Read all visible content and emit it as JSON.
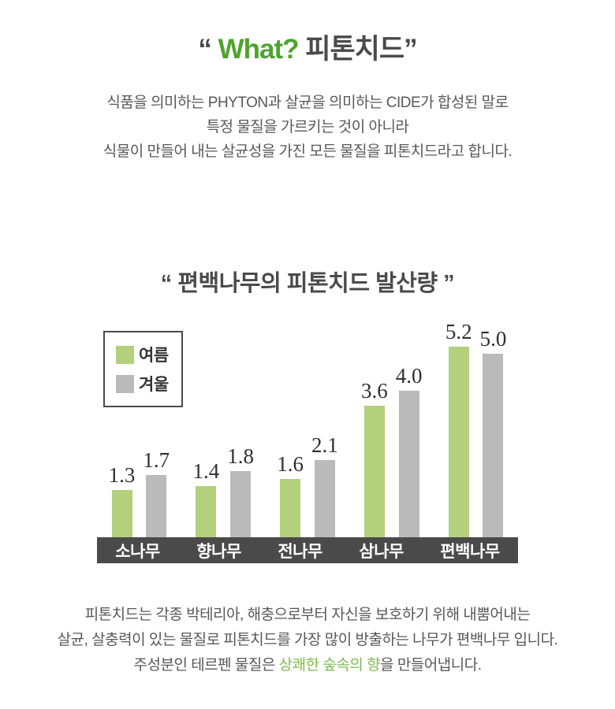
{
  "header": {
    "quote_open": "“ ",
    "title_accent": "What?",
    "title_rest": " 피톤치드”",
    "accent_color": "#4ea42e"
  },
  "intro": {
    "lines": [
      "식품을 의미하는 PHYTON과 살균을 의미하는 CIDE가 합성된 말로",
      "특정 물질을 가르키는 것이 아니라",
      "식물이 만들어 내는 살균성을 가진 모든 물질을 피톤치드라고 합니다."
    ]
  },
  "chart_data": {
    "type": "bar",
    "title": "“ 편백나무의 피톤치드 발산량 ”",
    "categories": [
      "소나무",
      "향나무",
      "전나무",
      "삼나무",
      "편백나무"
    ],
    "series": [
      {
        "name": "여름",
        "color": "#b3d07c",
        "values": [
          1.3,
          1.4,
          1.6,
          3.6,
          5.2
        ]
      },
      {
        "name": "겨울",
        "color": "#bababa",
        "values": [
          1.7,
          1.8,
          2.1,
          4.0,
          5.0
        ]
      }
    ],
    "ylim": [
      0,
      5.6
    ],
    "value_labels": true,
    "grid": false,
    "legend_position": "top-left",
    "axis_band_color": "#4a4a4a",
    "axis_label_color": "#ffffff"
  },
  "outro": {
    "line1": "피톤치드는 각종 박테리아, 해충으로부터 자신을 보호하기 위해 내뿜어내는",
    "line2": "살균, 살충력이 있는 물질로 피톤치드를 가장 많이 방출하는 나무가 편백나무 입니다.",
    "line3_prefix": "주성분인 테르펜 물질은 ",
    "line3_highlight": "상쾌한 숲속의 향",
    "line3_suffix": "을 만들어냅니다.",
    "highlight_color": "#7dbb4d"
  }
}
